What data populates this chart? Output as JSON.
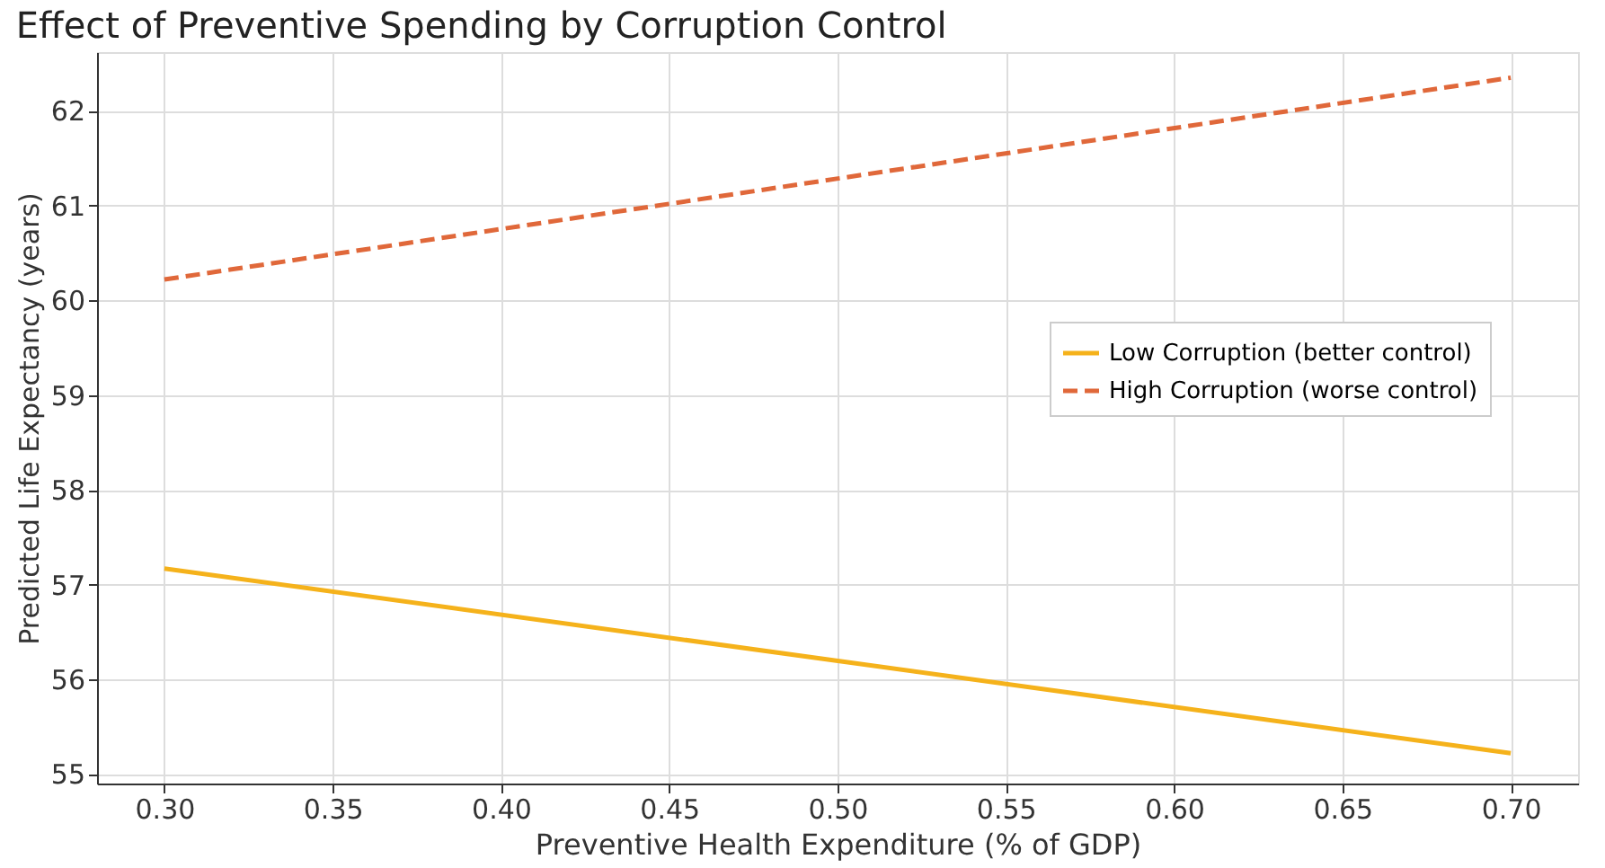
{
  "chart_data": {
    "type": "line",
    "title": "Effect of Preventive Spending by Corruption Control",
    "xlabel": "Preventive Health Expenditure (% of GDP)",
    "ylabel": "Predicted Life Expectancy (years)",
    "x": [
      0.3,
      0.7
    ],
    "series": [
      {
        "name": "Low Corruption (better control)",
        "color": "#f5b21b",
        "line_style": "solid",
        "values": [
          57.17,
          55.22
        ]
      },
      {
        "name": "High Corruption (worse control)",
        "color": "#e0683a",
        "line_style": "dashed",
        "values": [
          60.22,
          62.35
        ]
      }
    ],
    "xlim": [
      0.28,
      0.72
    ],
    "xticks": [
      {
        "value": 0.3,
        "label": "0.30"
      },
      {
        "value": 0.35,
        "label": "0.35"
      },
      {
        "value": 0.4,
        "label": "0.40"
      },
      {
        "value": 0.45,
        "label": "0.45"
      },
      {
        "value": 0.5,
        "label": "0.50"
      },
      {
        "value": 0.55,
        "label": "0.55"
      },
      {
        "value": 0.6,
        "label": "0.60"
      },
      {
        "value": 0.65,
        "label": "0.65"
      },
      {
        "value": 0.7,
        "label": "0.70"
      }
    ],
    "ylim": [
      54.9,
      62.62
    ],
    "yticks": [
      55,
      56,
      57,
      58,
      59,
      60,
      61,
      62
    ],
    "grid": true,
    "legend": "right",
    "marker": "none"
  }
}
